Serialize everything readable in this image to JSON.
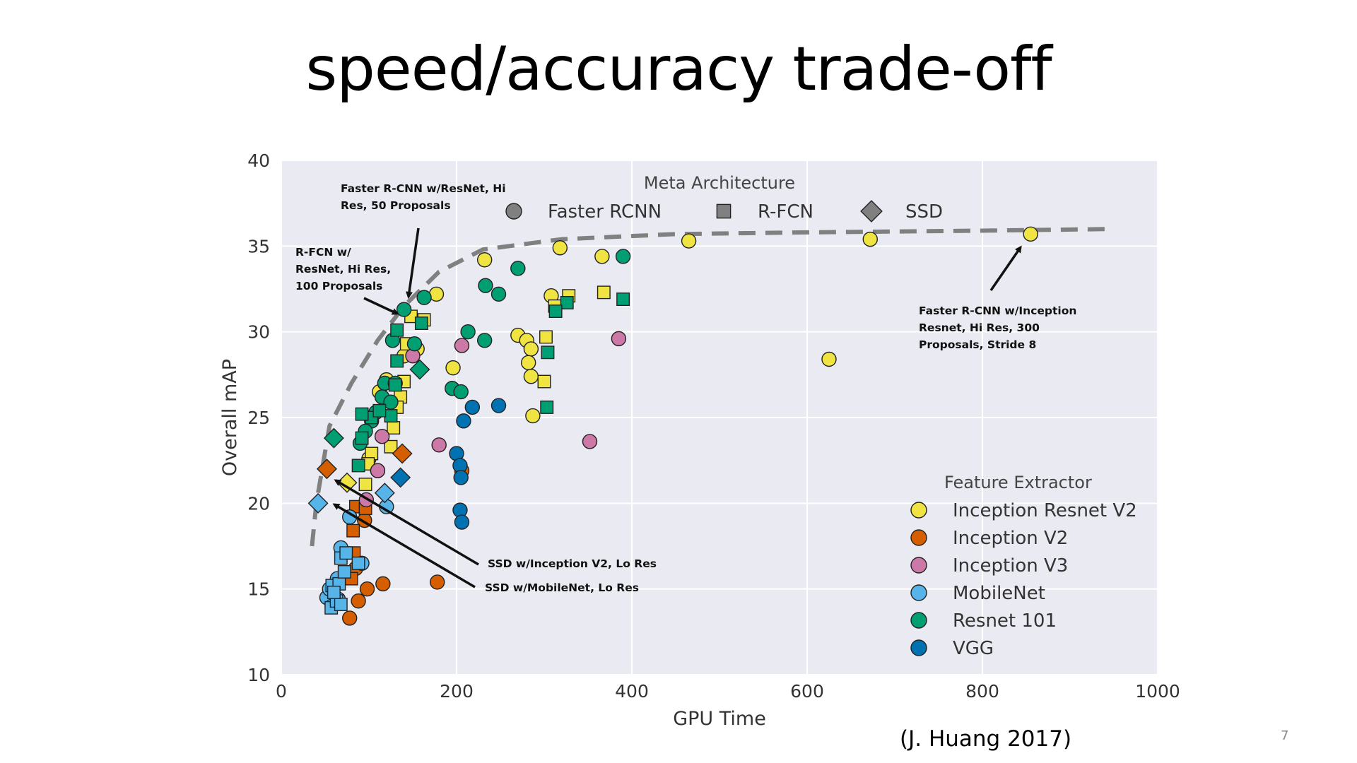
{
  "slide": {
    "title": "speed/accuracy trade-off",
    "citation": "(J. Huang 2017)",
    "page_number": "7"
  },
  "chart_data": {
    "type": "scatter",
    "title": "",
    "xlabel": "GPU Time",
    "ylabel": "Overall mAP",
    "xlim": [
      0,
      1000
    ],
    "ylim": [
      10,
      40
    ],
    "xticks": [
      0,
      200,
      400,
      600,
      800,
      1000
    ],
    "yticks": [
      10,
      15,
      20,
      25,
      30,
      35,
      40
    ],
    "grid": true,
    "background": "#eaeaf2",
    "meta_legend": {
      "title": "Meta Architecture",
      "placement": "top-center",
      "entries": [
        {
          "label": "Faster RCNN",
          "marker": "circle"
        },
        {
          "label": "R-FCN",
          "marker": "square"
        },
        {
          "label": "SSD",
          "marker": "diamond"
        }
      ]
    },
    "feature_legend": {
      "title": "Feature Extractor",
      "placement": "lower-right",
      "entries": [
        {
          "label": "Inception Resnet V2",
          "color": "#f0e442"
        },
        {
          "label": "Inception V2",
          "color": "#d55e00"
        },
        {
          "label": "Inception V3",
          "color": "#cc79a7"
        },
        {
          "label": "MobileNet",
          "color": "#56b4e9"
        },
        {
          "label": "Resnet 101",
          "color": "#009e73"
        },
        {
          "label": "VGG",
          "color": "#0072b2"
        }
      ]
    },
    "frontier": [
      [
        35,
        17.5
      ],
      [
        40,
        20
      ],
      [
        55,
        24.5
      ],
      [
        80,
        27
      ],
      [
        110,
        29.5
      ],
      [
        140,
        31.5
      ],
      [
        180,
        33.5
      ],
      [
        230,
        34.8
      ],
      [
        320,
        35.4
      ],
      [
        450,
        35.7
      ],
      [
        600,
        35.8
      ],
      [
        800,
        35.9
      ],
      [
        950,
        36
      ]
    ],
    "annotations": [
      {
        "text": [
          "Faster R-CNN w/ResNet, Hi",
          "Res, 50 Proposals"
        ]
      },
      {
        "text": [
          "R-FCN w/",
          "ResNet, Hi Res,",
          "100 Proposals"
        ]
      },
      {
        "text": [
          "Faster R-CNN w/Inception",
          "Resnet, Hi Res, 300",
          "Proposals, Stride 8"
        ]
      },
      {
        "text": [
          "SSD w/Inception V2, Lo Res"
        ]
      },
      {
        "text": [
          "SSD w/MobileNet, Lo Res"
        ]
      }
    ],
    "series": [
      {
        "extractor": "Inception Resnet V2",
        "meta": "Faster RCNN",
        "points": [
          [
            232,
            34.2
          ],
          [
            318,
            34.9
          ],
          [
            366,
            34.4
          ],
          [
            465,
            35.3
          ],
          [
            672,
            35.4
          ],
          [
            855,
            35.7
          ],
          [
            625,
            28.4
          ],
          [
            308,
            32.1
          ],
          [
            270,
            29.8
          ],
          [
            280,
            29.5
          ],
          [
            285,
            29.0
          ],
          [
            282,
            28.2
          ],
          [
            285,
            27.4
          ],
          [
            287,
            25.1
          ],
          [
            196,
            27.9
          ],
          [
            177,
            32.2
          ],
          [
            155,
            29.0
          ],
          [
            140,
            28.6
          ],
          [
            120,
            27.2
          ],
          [
            112,
            26.5
          ],
          [
            100,
            22.6
          ],
          [
            110,
            21.9
          ]
        ]
      },
      {
        "extractor": "Inception Resnet V2",
        "meta": "R-FCN",
        "points": [
          [
            148,
            30.9
          ],
          [
            163,
            30.7
          ],
          [
            143,
            29.3
          ],
          [
            140,
            27.1
          ],
          [
            136,
            26.2
          ],
          [
            132,
            25.6
          ],
          [
            128,
            24.4
          ],
          [
            125,
            23.3
          ],
          [
            103,
            22.9
          ],
          [
            99,
            22.3
          ],
          [
            96,
            21.1
          ],
          [
            302,
            29.7
          ],
          [
            300,
            27.1
          ],
          [
            312,
            31.5
          ],
          [
            328,
            32.1
          ],
          [
            368,
            32.3
          ]
        ]
      },
      {
        "extractor": "Inception Resnet V2",
        "meta": "SSD",
        "points": [
          [
            75,
            21.2
          ]
        ]
      },
      {
        "extractor": "Inception V2",
        "meta": "Faster RCNN",
        "points": [
          [
            78,
            13.3
          ],
          [
            88,
            14.3
          ],
          [
            98,
            15.0
          ],
          [
            116,
            15.3
          ],
          [
            178,
            15.4
          ],
          [
            95,
            19.0
          ],
          [
            206,
            21.9
          ],
          [
            72,
            15.8
          ],
          [
            85,
            16.2
          ]
        ]
      },
      {
        "extractor": "Inception V2",
        "meta": "R-FCN",
        "points": [
          [
            82,
            18.4
          ],
          [
            85,
            19.8
          ],
          [
            96,
            19.7
          ],
          [
            83,
            17.1
          ],
          [
            80,
            15.6
          ]
        ]
      },
      {
        "extractor": "Inception V2",
        "meta": "SSD",
        "points": [
          [
            52,
            22.0
          ],
          [
            138,
            22.9
          ]
        ]
      },
      {
        "extractor": "Inception V3",
        "meta": "Faster RCNN",
        "points": [
          [
            206,
            29.2
          ],
          [
            180,
            23.4
          ],
          [
            352,
            23.6
          ],
          [
            385,
            29.6
          ],
          [
            150,
            28.6
          ],
          [
            115,
            23.9
          ],
          [
            110,
            21.9
          ],
          [
            97,
            20.2
          ]
        ]
      },
      {
        "extractor": "MobileNet",
        "meta": "Faster RCNN",
        "points": [
          [
            52,
            14.5
          ],
          [
            55,
            15.0
          ],
          [
            64,
            15.6
          ],
          [
            68,
            17.4
          ],
          [
            78,
            19.2
          ],
          [
            92,
            16.5
          ],
          [
            120,
            19.8
          ],
          [
            58,
            14.0
          ],
          [
            65,
            14.4
          ]
        ]
      },
      {
        "extractor": "MobileNet",
        "meta": "R-FCN",
        "points": [
          [
            57,
            13.9
          ],
          [
            63,
            14.3
          ],
          [
            68,
            14.1
          ],
          [
            58,
            15.2
          ],
          [
            66,
            15.3
          ],
          [
            72,
            16.0
          ],
          [
            68,
            16.8
          ],
          [
            74,
            17.1
          ],
          [
            88,
            16.5
          ],
          [
            60,
            14.8
          ]
        ]
      },
      {
        "extractor": "MobileNet",
        "meta": "SSD",
        "points": [
          [
            42,
            20.0
          ],
          [
            118,
            20.6
          ]
        ]
      },
      {
        "extractor": "Resnet 101",
        "meta": "Faster RCNN",
        "points": [
          [
            140,
            31.3
          ],
          [
            163,
            32.0
          ],
          [
            270,
            33.7
          ],
          [
            233,
            32.7
          ],
          [
            248,
            32.2
          ],
          [
            390,
            34.4
          ],
          [
            213,
            30.0
          ],
          [
            232,
            29.5
          ],
          [
            195,
            26.7
          ],
          [
            205,
            26.5
          ],
          [
            152,
            29.3
          ],
          [
            127,
            29.5
          ],
          [
            118,
            27.0
          ],
          [
            115,
            26.2
          ],
          [
            108,
            25.3
          ],
          [
            103,
            24.8
          ],
          [
            96,
            24.2
          ],
          [
            90,
            23.5
          ],
          [
            125,
            25.9
          ],
          [
            130,
            27.0
          ]
        ]
      },
      {
        "extractor": "Resnet 101",
        "meta": "R-FCN",
        "points": [
          [
            160,
            30.5
          ],
          [
            132,
            30.1
          ],
          [
            132,
            28.3
          ],
          [
            130,
            26.9
          ],
          [
            125,
            25.1
          ],
          [
            103,
            25.0
          ],
          [
            92,
            25.2
          ],
          [
            92,
            23.8
          ],
          [
            88,
            22.2
          ],
          [
            112,
            25.4
          ],
          [
            304,
            28.8
          ],
          [
            303,
            25.6
          ],
          [
            390,
            31.9
          ],
          [
            326,
            31.7
          ],
          [
            313,
            31.2
          ]
        ]
      },
      {
        "extractor": "Resnet 101",
        "meta": "SSD",
        "points": [
          [
            60,
            23.8
          ],
          [
            158,
            27.8
          ]
        ]
      },
      {
        "extractor": "VGG",
        "meta": "Faster RCNN",
        "points": [
          [
            248,
            25.7
          ],
          [
            218,
            25.6
          ],
          [
            208,
            24.8
          ],
          [
            200,
            22.9
          ],
          [
            204,
            22.2
          ],
          [
            205,
            21.5
          ],
          [
            204,
            19.6
          ],
          [
            206,
            18.9
          ]
        ]
      },
      {
        "extractor": "VGG",
        "meta": "SSD",
        "points": [
          [
            136,
            21.5
          ]
        ]
      }
    ]
  }
}
